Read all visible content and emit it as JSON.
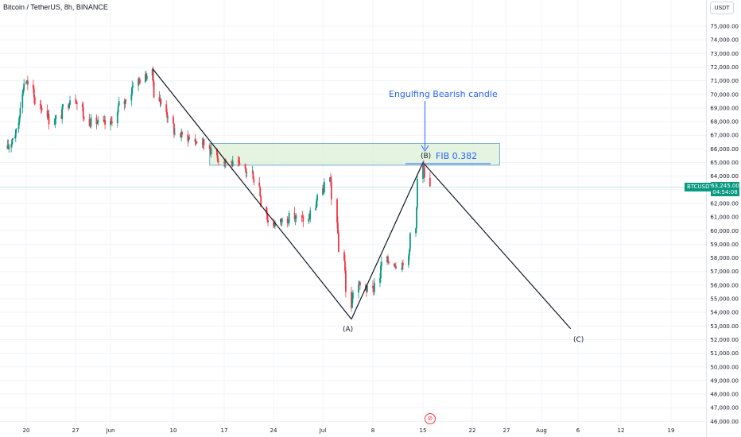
{
  "header": {
    "symbol_title": "Bitcoin / TetherUS, 8h, BINANCE",
    "currency_button": "USDT"
  },
  "price_axis": {
    "labels": [
      "75,000.00",
      "74,000.00",
      "73,000.00",
      "72,000.00",
      "71,000.00",
      "70,000.00",
      "69,000.00",
      "68,000.00",
      "67,000.00",
      "66,000.00",
      "65,000.00",
      "64,000.00",
      "62,000.00",
      "61,000.00",
      "60,000.00",
      "59,000.00",
      "58,000.00",
      "57,000.00",
      "56,000.00",
      "55,000.00",
      "54,000.00",
      "53,000.00",
      "52,000.00",
      "51,000.00",
      "50,000.00",
      "49,000.00",
      "48,000.00",
      "47,000.00",
      "46,000.00"
    ],
    "current_price": "63,245.00",
    "countdown": "04:54:08",
    "ticker_tag": "BTCUSDT"
  },
  "time_axis": {
    "labels": [
      "20",
      "27",
      "Jun",
      "10",
      "17",
      "24",
      "Jul",
      "8",
      "15",
      "22",
      "27",
      "Aug",
      "6",
      "12",
      "19"
    ]
  },
  "annotations": {
    "callout": "Engulfing Bearish candle",
    "fib_label": "FIB 0.382",
    "wave_a": "(A)",
    "wave_b": "(B)",
    "wave_c": "(C)"
  },
  "colors": {
    "bullish": "#089981",
    "bearish": "#f23645",
    "zone_fill": "#d9f0d3",
    "zone_border": "#5b9bd5",
    "callout_text": "#2962ff",
    "grid": "#f0f3fa"
  },
  "chart_data": {
    "type": "candlestick",
    "title": "Bitcoin / TetherUS, 8h, BINANCE",
    "y_axis_range": [
      45800,
      76000
    ],
    "x_axis_dates": [
      "2024-05-20",
      "2024-05-27",
      "2024-06-01",
      "2024-06-10",
      "2024-06-17",
      "2024-06-24",
      "2024-07-01",
      "2024-07-08",
      "2024-07-15",
      "2024-07-22",
      "2024-07-27",
      "2024-08-01",
      "2024-08-06",
      "2024-08-12",
      "2024-08-19"
    ],
    "close_path_keypoints": [
      {
        "date": "2024-05-15",
        "price": 66000
      },
      {
        "date": "2024-05-17",
        "price": 67000
      },
      {
        "date": "2024-05-20",
        "price": 71000
      },
      {
        "date": "2024-05-22",
        "price": 69300
      },
      {
        "date": "2024-05-24",
        "price": 68000
      },
      {
        "date": "2024-05-27",
        "price": 69800
      },
      {
        "date": "2024-05-29",
        "price": 68000
      },
      {
        "date": "2024-06-01",
        "price": 67800
      },
      {
        "date": "2024-06-03",
        "price": 69400
      },
      {
        "date": "2024-06-05",
        "price": 71000
      },
      {
        "date": "2024-06-07",
        "price": 71500
      },
      {
        "date": "2024-06-08",
        "price": 69600
      },
      {
        "date": "2024-06-11",
        "price": 67000
      },
      {
        "date": "2024-06-14",
        "price": 66500
      },
      {
        "date": "2024-06-17",
        "price": 65200
      },
      {
        "date": "2024-06-19",
        "price": 64800
      },
      {
        "date": "2024-06-21",
        "price": 64200
      },
      {
        "date": "2024-06-24",
        "price": 60500
      },
      {
        "date": "2024-06-27",
        "price": 61000
      },
      {
        "date": "2024-06-29",
        "price": 60800
      },
      {
        "date": "2024-07-01",
        "price": 62800
      },
      {
        "date": "2024-07-02",
        "price": 63700
      },
      {
        "date": "2024-07-04",
        "price": 58000
      },
      {
        "date": "2024-07-05",
        "price": 54500
      },
      {
        "date": "2024-07-06",
        "price": 56000
      },
      {
        "date": "2024-07-08",
        "price": 55600
      },
      {
        "date": "2024-07-10",
        "price": 57800
      },
      {
        "date": "2024-07-12",
        "price": 57500
      },
      {
        "date": "2024-07-13",
        "price": 57900
      },
      {
        "date": "2024-07-14",
        "price": 60500
      },
      {
        "date": "2024-07-15",
        "price": 64800
      },
      {
        "date": "2024-07-16",
        "price": 63245
      }
    ],
    "wave_lines": [
      {
        "from": {
          "date": "2024-06-07",
          "price": 71900
        },
        "to": {
          "date": "2024-07-05",
          "price": 53500
        }
      },
      {
        "from": {
          "date": "2024-07-05",
          "price": 53500
        },
        "to": {
          "date": "2024-07-15",
          "price": 65000
        }
      },
      {
        "from": {
          "date": "2024-07-15",
          "price": 65000
        },
        "to": {
          "date": "2024-08-05",
          "price": 52800
        }
      }
    ],
    "resistance_zone": {
      "date_from": "2024-06-15",
      "date_to": "2024-07-26",
      "price_low": 64800,
      "price_high": 66400
    },
    "fib_line": {
      "date_from": "2024-07-12",
      "date_to": "2024-07-21",
      "price": 64800
    },
    "current_price": 63245,
    "grid": true
  }
}
